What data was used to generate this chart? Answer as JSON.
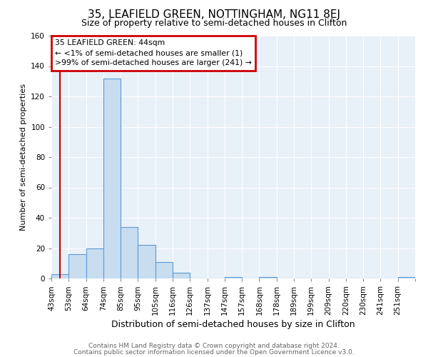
{
  "title": "35, LEAFIELD GREEN, NOTTINGHAM, NG11 8EJ",
  "subtitle": "Size of property relative to semi-detached houses in Clifton",
  "xlabel": "Distribution of semi-detached houses by size in Clifton",
  "ylabel": "Number of semi-detached properties",
  "bin_labels": [
    "43sqm",
    "53sqm",
    "64sqm",
    "74sqm",
    "85sqm",
    "95sqm",
    "105sqm",
    "116sqm",
    "126sqm",
    "137sqm",
    "147sqm",
    "157sqm",
    "168sqm",
    "178sqm",
    "189sqm",
    "199sqm",
    "209sqm",
    "220sqm",
    "230sqm",
    "241sqm",
    "251sqm"
  ],
  "bin_counts": [
    3,
    16,
    20,
    132,
    34,
    22,
    11,
    4,
    0,
    0,
    1,
    0,
    1,
    0,
    0,
    0,
    0,
    0,
    0,
    0,
    1
  ],
  "bar_color": "#c9ddf0",
  "bar_edge_color": "#5b9bd5",
  "annotation_border_color": "#cc0000",
  "annotation_title": "35 LEAFIELD GREEN: 44sqm",
  "annotation_line1": "← <1% of semi-detached houses are smaller (1)",
  "annotation_line2": ">99% of semi-detached houses are larger (241) →",
  "property_line_x": 0.5,
  "ylim": [
    0,
    160
  ],
  "yticks": [
    0,
    20,
    40,
    60,
    80,
    100,
    120,
    140,
    160
  ],
  "footer1": "Contains HM Land Registry data © Crown copyright and database right 2024.",
  "footer2": "Contains public sector information licensed under the Open Government Licence v3.0.",
  "bg_color": "#ffffff",
  "plot_bg_color": "#e8f0f8",
  "grid_color": "#ffffff",
  "title_fontsize": 11,
  "subtitle_fontsize": 9,
  "ylabel_fontsize": 8,
  "xlabel_fontsize": 9,
  "tick_fontsize": 7.5,
  "footer_fontsize": 6.5
}
